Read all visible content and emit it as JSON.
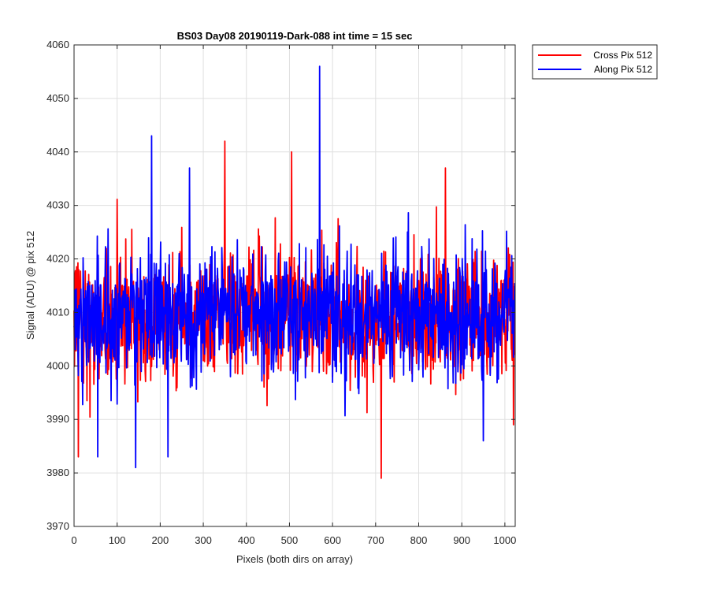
{
  "chart_data": {
    "type": "line",
    "title": "BS03 Day08 20190119-Dark-088 int time = 15 sec",
    "xlabel": "Pixels (both dirs on array)",
    "ylabel": "Signal (ADU) @ pix 512",
    "xlim": [
      0,
      1024
    ],
    "ylim": [
      3970,
      4060
    ],
    "x_ticks": [
      0,
      100,
      200,
      300,
      400,
      500,
      600,
      700,
      800,
      900,
      1000
    ],
    "y_ticks": [
      3970,
      3980,
      3990,
      4000,
      4010,
      4020,
      4030,
      4040,
      4050,
      4060
    ],
    "grid": true,
    "legend_position": "outside-top-right",
    "samples_per_series": 1024,
    "series": [
      {
        "name": "Cross Pix 512",
        "color": "#ff0000",
        "baseline": 4009,
        "notable_points": [
          [
            10,
            3983
          ],
          [
            350,
            4042
          ],
          [
            505,
            4040
          ],
          [
            713,
            3979
          ],
          [
            862,
            4037
          ],
          [
            1020,
            3989
          ]
        ]
      },
      {
        "name": "Along Pix 512",
        "color": "#0000ff",
        "baseline": 4010,
        "notable_points": [
          [
            55,
            3983
          ],
          [
            143,
            3981
          ],
          [
            180,
            4043
          ],
          [
            218,
            3983
          ],
          [
            268,
            4037
          ],
          [
            570,
            4056
          ],
          [
            950,
            3986
          ]
        ]
      }
    ]
  }
}
